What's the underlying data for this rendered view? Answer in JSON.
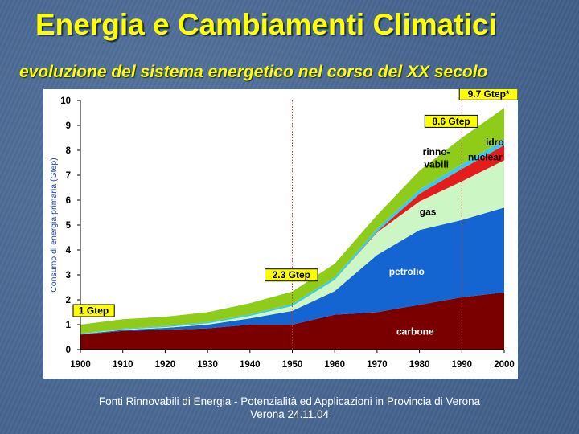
{
  "slide": {
    "title": "Energia e Cambiamenti Climatici",
    "subtitle": "evoluzione del sistema energetico nel corso del XX secolo",
    "footer_line1": "Fonti Rinnovabili di Energia - Potenzialità ed Applicazioni in Provincia di Verona",
    "footer_line2": "Verona 24.11.04"
  },
  "chart_data": {
    "type": "area",
    "stacked": true,
    "title": "",
    "xlabel": "",
    "ylabel": "Consumo di energia primaria (Gtep)",
    "x": [
      1900,
      1910,
      1920,
      1930,
      1940,
      1950,
      1960,
      1970,
      1980,
      1990,
      2000
    ],
    "xlim": [
      1900,
      2000
    ],
    "ylim": [
      0,
      10
    ],
    "yticks": [
      "0",
      "1",
      "2",
      "3",
      "4",
      "5",
      "6",
      "7",
      "8",
      "9",
      "10"
    ],
    "xticks": [
      "1900",
      "1910",
      "1920",
      "1930",
      "1940",
      "1950",
      "1960",
      "1970",
      "1980",
      "1990",
      "2000"
    ],
    "reference_lines_x": [
      1950,
      1990
    ],
    "series": [
      {
        "name": "carbone",
        "color": "#7a0000",
        "values": [
          0.6,
          0.75,
          0.8,
          0.85,
          1.0,
          1.0,
          1.4,
          1.5,
          1.8,
          2.1,
          2.3
        ]
      },
      {
        "name": "petrolio",
        "color": "#1464d2",
        "values": [
          0.02,
          0.04,
          0.07,
          0.15,
          0.25,
          0.55,
          0.95,
          2.3,
          3.0,
          3.1,
          3.4
        ]
      },
      {
        "name": "gas",
        "color": "#ccf7c4",
        "values": [
          0.01,
          0.02,
          0.03,
          0.05,
          0.1,
          0.2,
          0.45,
          0.9,
          1.15,
          1.55,
          1.9
        ]
      },
      {
        "name": "nuclear",
        "color": "#e51c1c",
        "values": [
          0,
          0,
          0,
          0,
          0,
          0,
          0,
          0.03,
          0.3,
          0.5,
          0.6
        ]
      },
      {
        "name": "idro",
        "color": "#3ecae6",
        "values": [
          0.02,
          0.03,
          0.04,
          0.05,
          0.06,
          0.08,
          0.1,
          0.12,
          0.18,
          0.2,
          0.22
        ]
      },
      {
        "name": "rinnovabili",
        "color": "#8fcc1a",
        "values": [
          0.35,
          0.38,
          0.38,
          0.4,
          0.45,
          0.5,
          0.55,
          0.55,
          0.75,
          1.05,
          1.28
        ]
      }
    ],
    "area_labels": [
      {
        "text": "carbone",
        "x": 1979,
        "y": 0.6,
        "color": "#ffffff",
        "anchor": "middle"
      },
      {
        "text": "petrolio",
        "x": 1977,
        "y": 3.0,
        "color": "#ffffff",
        "anchor": "middle"
      },
      {
        "text": "gas",
        "x": 1982,
        "y": 5.4,
        "color": "#000000",
        "anchor": "middle"
      },
      {
        "text": "rinno-",
        "x": 1984,
        "y": 7.8,
        "color": "#000000",
        "anchor": "middle"
      },
      {
        "text": "vabili",
        "x": 1984,
        "y": 7.3,
        "color": "#000000",
        "anchor": "middle"
      },
      {
        "text": "nuclear",
        "x": 1995.5,
        "y": 7.6,
        "color": "#000000",
        "anchor": "middle"
      },
      {
        "text": "idro",
        "x": 1997.8,
        "y": 8.2,
        "color": "#000000",
        "anchor": "middle"
      }
    ],
    "annotations": [
      {
        "text": "1 Gtep",
        "x": 1900,
        "y": 1.0
      },
      {
        "text": "2.3 Gtep",
        "x": 1950,
        "y": 2.3
      },
      {
        "text": "8.6 Gtep",
        "x": 1990,
        "y": 8.6
      },
      {
        "text": "9.7 Gtep*",
        "x": 2000,
        "y": 9.7
      }
    ]
  }
}
